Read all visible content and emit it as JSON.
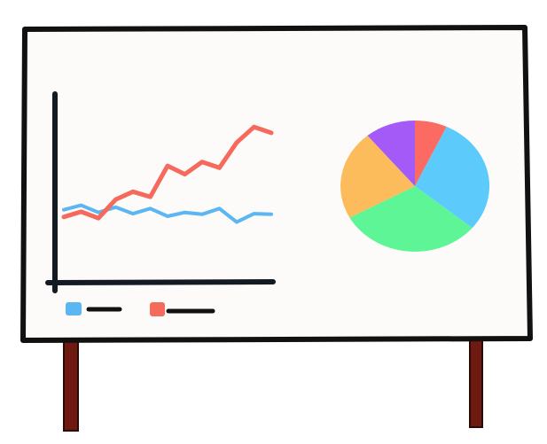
{
  "board": {
    "frame_color": "#111111",
    "surface_color": "#fdfbf9",
    "leg_color": "#6e1a10"
  },
  "line_chart": {
    "axis_color": "#131a22",
    "series": [
      {
        "icon": "blue-line",
        "color": "#5bb6f2",
        "values": [
          0.62,
          0.69,
          0.58,
          0.66,
          0.56,
          0.64,
          0.52,
          0.58,
          0.55,
          0.64,
          0.43,
          0.56,
          0.55
        ]
      },
      {
        "icon": "red-line",
        "color": "#f56a5c",
        "values": [
          0.51,
          0.59,
          0.49,
          0.78,
          0.9,
          0.82,
          1.3,
          1.17,
          1.36,
          1.27,
          1.66,
          1.9,
          1.81
        ]
      }
    ]
  },
  "legend": [
    {
      "swatch_color": "#5bb6f2",
      "dash_color": "#111111"
    },
    {
      "swatch_color": "#f56a5c",
      "dash_color": "#111111"
    }
  ],
  "pie": {
    "slices": [
      {
        "name": "red-slice",
        "color": "#fb6b64",
        "value": 7
      },
      {
        "name": "blue-slice",
        "color": "#5ccbfb",
        "value": 29
      },
      {
        "name": "green-slice",
        "color": "#5ef597",
        "value": 31
      },
      {
        "name": "orange-slice",
        "color": "#fdbc5c",
        "value": 22
      },
      {
        "name": "purple-slice",
        "color": "#a45af6",
        "value": 11
      }
    ]
  }
}
